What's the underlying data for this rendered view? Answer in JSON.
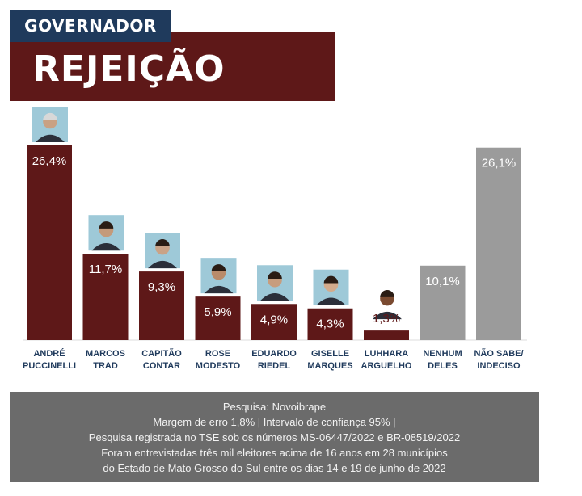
{
  "header": {
    "tag": "GOVERNADOR",
    "title": "REJEIÇÃO"
  },
  "colors": {
    "candidate": "#5e1818",
    "other": "#9b9b9b",
    "header_tag": "#1f3a5c",
    "label": "#1f3a5c",
    "footer": "#6b6b6b"
  },
  "chart_data": {
    "type": "bar",
    "title": "REJEIÇÃO",
    "ylim": [
      0,
      30
    ],
    "grid": false,
    "categories": [
      [
        "ANDRÉ",
        "PUCCINELLI"
      ],
      [
        "MARCOS",
        "TRAD"
      ],
      [
        "CAPITÃO",
        "CONTAR"
      ],
      [
        "ROSE",
        "MODESTO"
      ],
      [
        "EDUARDO",
        "RIEDEL"
      ],
      [
        "GISELLE",
        "MARQUES"
      ],
      [
        "LUHHARA",
        "ARGUELHO"
      ],
      [
        "NENHUM",
        "DELES"
      ],
      [
        "NÃO SABE/",
        "INDECISO"
      ]
    ],
    "values": [
      26.4,
      11.7,
      9.3,
      5.9,
      4.9,
      4.3,
      1.3,
      10.1,
      26.1
    ],
    "value_labels": [
      "26,4%",
      "11,7%",
      "9,3%",
      "5,9%",
      "4,9%",
      "4,3%",
      "1,3%",
      "10,1%",
      "26,1%"
    ],
    "kind": [
      "candidate",
      "candidate",
      "candidate",
      "candidate",
      "candidate",
      "candidate",
      "candidate",
      "other",
      "other"
    ]
  },
  "footer": {
    "lines": [
      "Pesquisa: Novoibrape",
      "Margem de erro 1,8% | Intervalo de confiança 95% |",
      "Pesquisa registrada no TSE sob os números MS-06447/2022 e BR-08519/2022",
      "Foram entrevistadas três mil eleitores acima de 16 anos em 28 municípios",
      "do Estado de Mato Grosso do Sul entre os dias 14 e 19 de junho de 2022"
    ]
  }
}
